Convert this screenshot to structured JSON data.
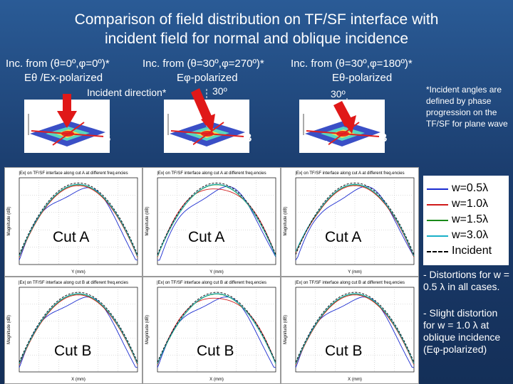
{
  "title": {
    "line1": "Comparison of field distribution on TF/SF interface with",
    "line2": "incident field for normal and oblique incidence"
  },
  "columns": [
    {
      "header": "Inc. from (θ=0º,φ=0º)*",
      "polarization": "Eθ /Ex-polarized"
    },
    {
      "header": "Inc. from (θ=30º,φ=270º)*",
      "polarization": "Eφ-polarized"
    },
    {
      "header": "Inc. from (θ=30º,φ=180º)*",
      "polarization": "Eθ-polarized"
    }
  ],
  "incident_direction_label": "Incident direction*",
  "angle_labels": [
    "30º",
    "30º"
  ],
  "point_labels": {
    "a": "A",
    "b": "B"
  },
  "footnote": "*Incident angles are defined by phase progression on the TF/SF for plane wave",
  "plot_title_a": "|Ex| on TF/SF interface along cut A at different freq.encies",
  "plot_title_b": "|Ex| on TF/SF interface along cut B at different freq.encies",
  "ylabel": "Magnitude (dB)",
  "xlabel_a": "Y (mm)",
  "xlabel_b": "X (mm)",
  "cut_labels": {
    "a": "Cut A",
    "b": "Cut B"
  },
  "legend": [
    {
      "label": "w=0.5λ",
      "color": "#1a2bd0",
      "dashed": false
    },
    {
      "label": "w=1.0λ",
      "color": "#d01a1a",
      "dashed": false
    },
    {
      "label": "w=1.5λ",
      "color": "#1a8a1a",
      "dashed": false
    },
    {
      "label": "w=3.0λ",
      "color": "#19b0c8",
      "dashed": false
    },
    {
      "label": "Incident",
      "color": "#000000",
      "dashed": true
    }
  ],
  "comments": [
    "- Distortions for w = 0.5 λ in all cases.",
    "- Slight distortion for w = 1.0 λ at oblique incidence (Eφ-polarized)"
  ]
}
